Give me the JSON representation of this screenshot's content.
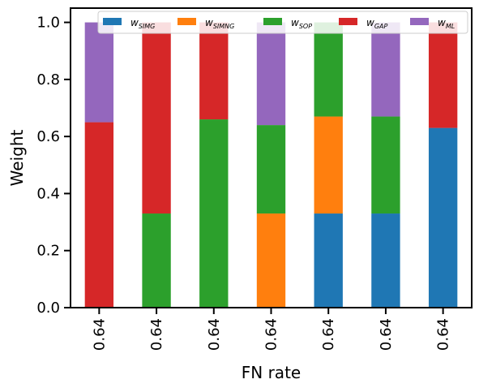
{
  "chart_data": {
    "type": "bar",
    "stacked": true,
    "categories": [
      "0.64",
      "0.64",
      "0.64",
      "0.64",
      "0.64",
      "0.64",
      "0.64"
    ],
    "xlabel": "FN rate",
    "ylabel": "Weight",
    "ylim": [
      0,
      1.05
    ],
    "yticks": [
      "0.0",
      "0.2",
      "0.4",
      "0.6",
      "0.8",
      "1.0"
    ],
    "grid": false,
    "legend_placement": "top",
    "series": [
      {
        "base": "w",
        "sub": "SIMG",
        "color": "#1f77b4",
        "values": [
          0,
          0,
          0,
          0,
          0.33,
          0.33,
          0.63
        ]
      },
      {
        "base": "w",
        "sub": "SIMNG",
        "color": "#ff7f0e",
        "values": [
          0,
          0,
          0,
          0.33,
          0.34,
          0,
          0
        ]
      },
      {
        "base": "w",
        "sub": "SOP",
        "color": "#2ca02c",
        "values": [
          0,
          0.33,
          0.66,
          0.31,
          0.33,
          0.34,
          0
        ]
      },
      {
        "base": "w",
        "sub": "GAP",
        "color": "#d62728",
        "values": [
          0.65,
          0.67,
          0.34,
          0,
          0,
          0,
          0.37
        ]
      },
      {
        "base": "w",
        "sub": "ML",
        "color": "#9467bd",
        "values": [
          0.35,
          0,
          0,
          0.36,
          0,
          0.33,
          0
        ]
      }
    ]
  }
}
